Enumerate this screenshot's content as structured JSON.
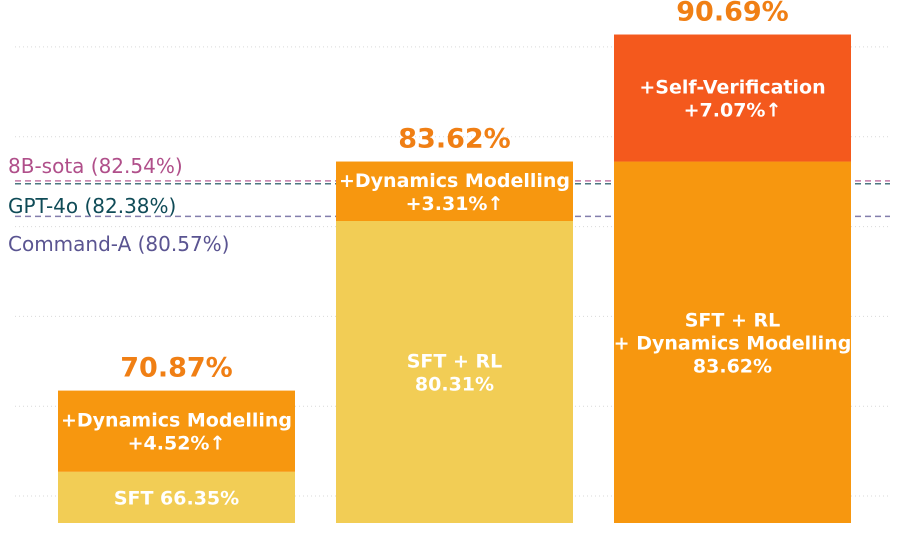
{
  "chart_data": {
    "type": "bar",
    "stacked": true,
    "ylim": [
      63.5,
      92.5
    ],
    "grid": true,
    "grid_values": [
      65,
      70,
      75,
      80,
      85,
      90
    ],
    "references": [
      {
        "label": "8B-sota (82.54%)",
        "value": 82.54,
        "color": "#b04f8a"
      },
      {
        "label": "GPT-4o (82.38%)",
        "value": 82.38,
        "color": "#0f4b57"
      },
      {
        "label": "Command-A (80.57%)",
        "value": 80.57,
        "color": "#5a5491"
      }
    ],
    "bars": [
      {
        "total_label": "70.87%",
        "segments": [
          {
            "start": 63.5,
            "end": 66.35,
            "lines": [
              "SFT 66.35%"
            ],
            "color": "#f2cd55"
          },
          {
            "start": 66.35,
            "end": 70.87,
            "lines": [
              "+Dynamics Modelling",
              "+4.52%↑"
            ],
            "color": "#f7970f"
          }
        ]
      },
      {
        "total_label": "83.62%",
        "segments": [
          {
            "start": 63.5,
            "end": 80.31,
            "lines": [
              "SFT + RL",
              "80.31%"
            ],
            "color": "#f2cd55"
          },
          {
            "start": 80.31,
            "end": 83.62,
            "lines": [
              "+Dynamics Modelling",
              "+3.31%↑"
            ],
            "color": "#f7970f"
          }
        ]
      },
      {
        "total_label": "90.69%",
        "segments": [
          {
            "start": 63.5,
            "end": 83.62,
            "lines": [
              "SFT + RL",
              "+ Dynamics Modelling",
              "83.62%"
            ],
            "color": "#f7970f"
          },
          {
            "start": 83.62,
            "end": 90.69,
            "lines": [
              "+Self-Verification",
              "+7.07%↑"
            ],
            "color": "#f4591d"
          }
        ]
      }
    ],
    "total_label_color": "#f07f14",
    "segment_text_color": "#ffffff"
  }
}
